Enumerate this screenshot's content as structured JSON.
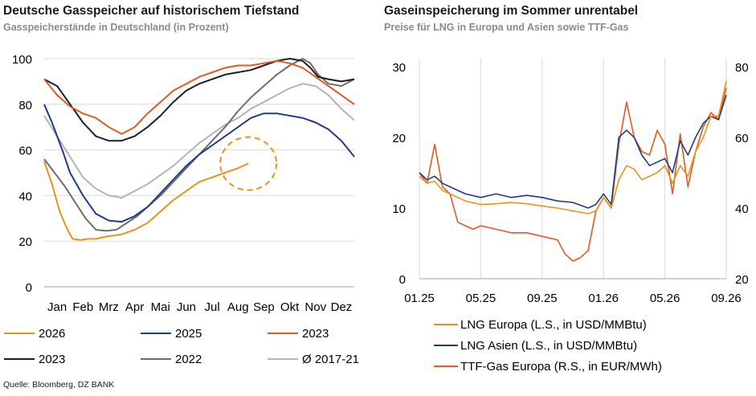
{
  "left": {
    "title": "Deutsche Gasspeicher auf historischem Tiefstand",
    "subtitle": "Gasspeicherstände in Deutschland (in Prozent)"
  },
  "right": {
    "title": "Gaseinspeicherung im Sommer unrentabel",
    "subtitle": "Preise für LNG in Europa und Asien sowie TTF-Gas"
  },
  "source": "Quelle: Bloomberg, DZ BANK",
  "chart_data": [
    {
      "type": "line",
      "title": "Deutsche Gasspeicher auf historischem Tiefstand",
      "subtitle": "Gasspeicherstände in Deutschland (in Prozent)",
      "x_unit": "month index (0 = Jan 1)",
      "categories": [
        "Jan",
        "Feb",
        "Mrz",
        "Apr",
        "Mai",
        "Jun",
        "Jul",
        "Aug",
        "Sep",
        "Okt",
        "Nov",
        "Dez"
      ],
      "y_ticks": [
        0,
        20,
        40,
        60,
        80,
        100
      ],
      "ylim": [
        0,
        100
      ],
      "xlim": [
        0,
        12
      ],
      "grid": "horizontal",
      "legend_position": "bottom",
      "annotation": "dashed orange circle around latest 2026 value",
      "series": [
        {
          "name": "2026",
          "color": "#E8941A",
          "x": [
            0,
            0.3,
            0.6,
            0.9,
            1.1,
            1.4,
            1.7,
            2,
            2.4,
            3,
            3.5,
            4,
            4.5,
            5,
            5.5,
            6,
            6.5,
            7,
            7.5,
            7.9
          ],
          "y": [
            55,
            45,
            33,
            25,
            21,
            20.5,
            21,
            21,
            22,
            23,
            25,
            28,
            33,
            38,
            42,
            46,
            48,
            50,
            52,
            54
          ]
        },
        {
          "name": "2025",
          "color": "#1F3D85",
          "x": [
            0,
            0.3,
            0.7,
            1,
            1.5,
            2,
            2.5,
            3,
            3.5,
            4,
            4.5,
            5,
            5.5,
            6,
            6.5,
            7,
            7.5,
            8,
            8.5,
            9,
            9.5,
            10,
            10.5,
            11,
            11.5,
            12
          ],
          "y": [
            80,
            72,
            60,
            50,
            40,
            32,
            29,
            28.5,
            31,
            35,
            41,
            47,
            53,
            58,
            62,
            66,
            70,
            74,
            76,
            76,
            75,
            74,
            72,
            69,
            64,
            57
          ]
        },
        {
          "name": "2023",
          "color": "#E05A22",
          "x": [
            0,
            0.5,
            1,
            1.5,
            2,
            2.5,
            3,
            3.5,
            4,
            4.5,
            5,
            5.5,
            6,
            6.5,
            7,
            7.5,
            8,
            8.5,
            9,
            9.5,
            10,
            10.5,
            11,
            11.5,
            12
          ],
          "y": [
            91,
            84,
            79,
            76,
            74,
            70,
            67,
            70,
            76,
            81,
            86,
            89,
            92,
            94,
            96,
            97,
            97,
            98,
            99,
            98,
            96,
            92,
            88,
            84,
            80
          ]
        },
        {
          "name": "2023",
          "color": "#1C1C2E",
          "x": [
            0,
            0.5,
            1,
            1.5,
            2,
            2.5,
            3,
            3.5,
            4,
            4.5,
            5,
            5.5,
            6,
            6.5,
            7,
            7.5,
            8,
            8.5,
            9,
            9.5,
            10,
            10.3,
            10.6,
            11,
            11.5,
            12
          ],
          "y": [
            91,
            88,
            80,
            72,
            66,
            64,
            64,
            66,
            70,
            75,
            81,
            86,
            89,
            91,
            93,
            94,
            95,
            97,
            99,
            100,
            99,
            96,
            92,
            91,
            90,
            91
          ]
        },
        {
          "name": "2022",
          "color": "#6E6E6E",
          "x": [
            0,
            0.4,
            0.8,
            1.2,
            1.6,
            2,
            2.4,
            2.8,
            3.2,
            3.6,
            4,
            4.5,
            5,
            5.5,
            6,
            6.5,
            7,
            7.5,
            8,
            8.5,
            9,
            9.5,
            10,
            10.3,
            10.6,
            11,
            11.5,
            12
          ],
          "y": [
            56,
            50,
            44,
            37,
            30,
            25,
            24.5,
            25,
            28,
            31,
            35,
            40,
            46,
            52,
            58,
            64,
            70,
            77,
            83,
            88,
            93,
            97,
            100,
            98,
            93,
            89,
            88,
            91
          ]
        },
        {
          "name": "Ø 2017-21",
          "color": "#B4B4B4",
          "x": [
            0,
            0.5,
            1,
            1.5,
            2,
            2.5,
            3,
            3.5,
            4,
            4.5,
            5,
            5.5,
            6,
            6.5,
            7,
            7.5,
            8,
            8.5,
            9,
            9.5,
            10,
            10.5,
            11,
            11.5,
            12
          ],
          "y": [
            75,
            66,
            57,
            48,
            43,
            40,
            39,
            42,
            45,
            49,
            53,
            58,
            63,
            67,
            71,
            74,
            78,
            81,
            84,
            87,
            89,
            88,
            84,
            78,
            73
          ]
        }
      ]
    },
    {
      "type": "line",
      "title": "Gaseinspeicherung im Sommer unrentabel",
      "subtitle": "Preise für LNG in Europa und Asien sowie TTF-Gas",
      "x_tick_labels": [
        "01.25",
        "05.25",
        "09.25",
        "01.26",
        "05.26",
        "09.26"
      ],
      "x_unit": "months since 01.25",
      "xlim": [
        0,
        20
      ],
      "ylim_left": [
        0,
        30
      ],
      "y_ticks_left": [
        0,
        10,
        20,
        30
      ],
      "ylim_right": [
        20,
        80
      ],
      "y_ticks_right": [
        20,
        40,
        60,
        80
      ],
      "grid": "vertical",
      "legend_position": "bottom",
      "series": [
        {
          "name": "LNG Europa (L.S., in USD/MMBtu)",
          "axis": "left",
          "color": "#E8941A",
          "x": [
            0,
            0.5,
            1,
            1.5,
            2,
            3,
            4,
            5,
            6,
            7,
            8,
            9,
            10,
            11,
            11.5,
            12,
            12.5,
            13,
            13.5,
            14,
            14.5,
            15,
            15.5,
            16,
            16.5,
            17,
            17.5,
            18,
            18.5,
            19,
            19.5,
            20
          ],
          "y": [
            14.5,
            13.5,
            13.8,
            12.5,
            12,
            11,
            10.5,
            10.6,
            10.8,
            10.6,
            10.3,
            10,
            9.6,
            9.2,
            9.6,
            11.5,
            10,
            14,
            16,
            15.5,
            14,
            14.5,
            15,
            16,
            13.5,
            16,
            14.5,
            18,
            20,
            23,
            23,
            28
          ]
        },
        {
          "name": "LNG Asien (L.S., in USD/MMBtu)",
          "axis": "left",
          "color": "#1F3D85",
          "x": [
            0,
            0.5,
            1,
            1.5,
            2,
            3,
            4,
            5,
            6,
            7,
            8,
            9,
            10,
            11,
            11.5,
            12,
            12.5,
            13,
            13.5,
            14,
            14.5,
            15,
            15.5,
            16,
            16.5,
            17,
            17.5,
            18,
            18.5,
            19,
            19.5,
            20
          ],
          "y": [
            15,
            14,
            14.5,
            13.5,
            13,
            12,
            11.5,
            12,
            11.5,
            11.8,
            11.5,
            11,
            10.8,
            10,
            10.5,
            12,
            10.5,
            20,
            21,
            20,
            17.5,
            16,
            16.5,
            17,
            15,
            19.5,
            17.5,
            20,
            22,
            23,
            22.5,
            26
          ]
        },
        {
          "name": "TTF-Gas Europa (R.S., in EUR/MWh)",
          "axis": "right",
          "color": "#E05A22",
          "x": [
            0,
            0.5,
            1,
            1.5,
            2,
            2.5,
            3,
            3.5,
            4,
            5,
            6,
            7,
            8,
            9,
            9.5,
            10,
            10.5,
            11,
            11.5,
            12,
            12.5,
            13,
            13.5,
            14,
            14.5,
            15,
            15.5,
            16,
            16.5,
            17,
            17.5,
            18,
            18.5,
            19,
            19.5,
            20
          ],
          "y": [
            50,
            47,
            58,
            46,
            44,
            36,
            35,
            34,
            35,
            34,
            33,
            33,
            32,
            31,
            27,
            25,
            26,
            28,
            39,
            43,
            40,
            58,
            70,
            60,
            56,
            55,
            62,
            58,
            44,
            61,
            46,
            56,
            63,
            67,
            65,
            74
          ]
        }
      ]
    }
  ]
}
